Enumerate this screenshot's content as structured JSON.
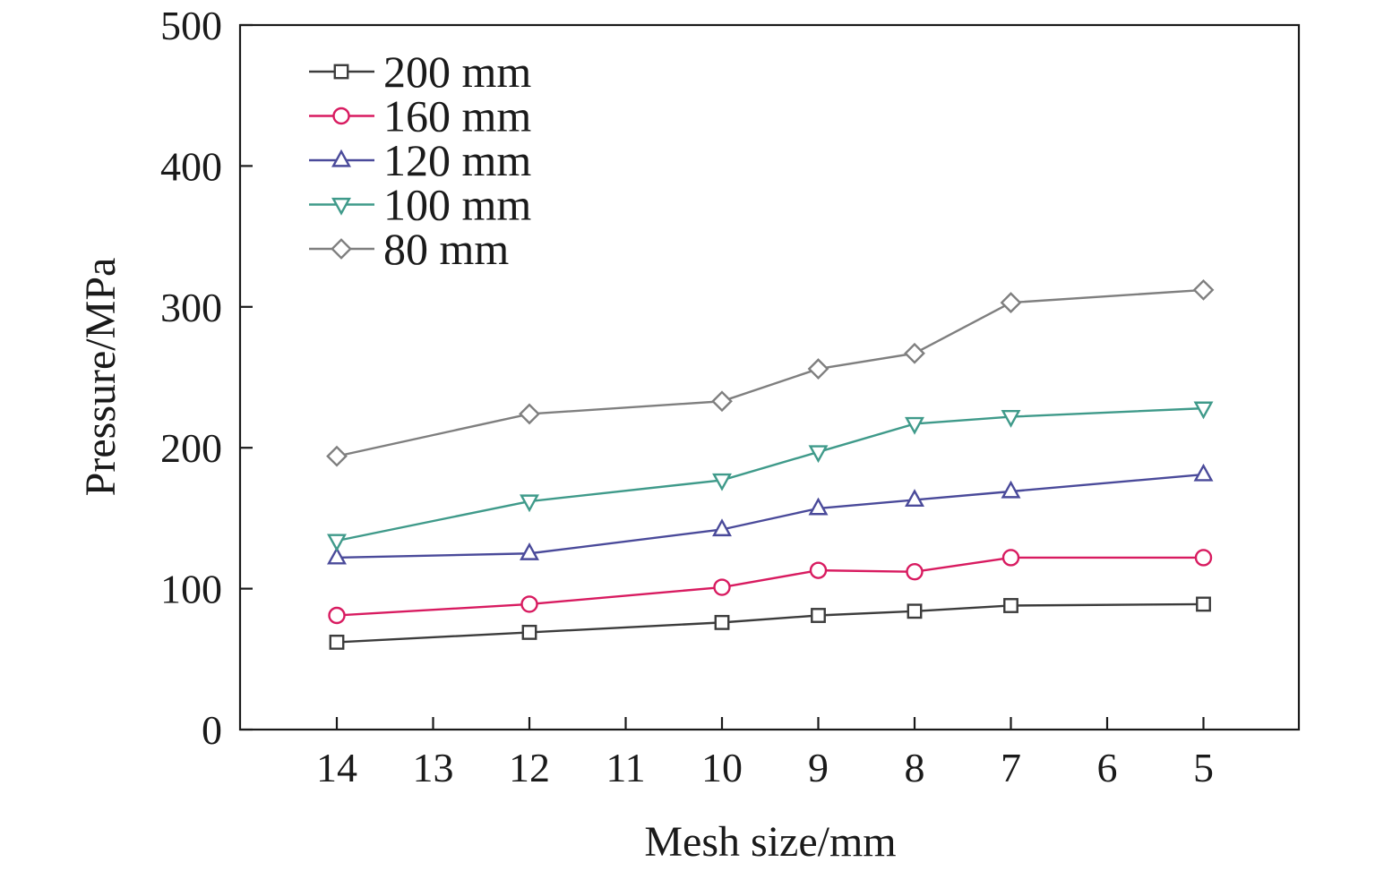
{
  "chart_data": {
    "type": "line",
    "title": "",
    "xlabel": "Mesh size/mm",
    "ylabel": "Pressure/MPa",
    "x_ticks": [
      14,
      13,
      12,
      11,
      10,
      9,
      8,
      7,
      6,
      5
    ],
    "x": [
      14,
      12,
      10,
      9,
      8,
      7,
      5
    ],
    "ylim": [
      0,
      500
    ],
    "y_ticks": [
      0,
      100,
      200,
      300,
      400,
      500
    ],
    "legend_position": "top-left",
    "series": [
      {
        "name": "200 mm",
        "marker": "square",
        "color": "#3c3c3c",
        "values": [
          62,
          69,
          76,
          81,
          84,
          88,
          89
        ]
      },
      {
        "name": "160 mm",
        "marker": "circle",
        "color": "#d81b60",
        "values": [
          81,
          89,
          101,
          113,
          112,
          122,
          122
        ]
      },
      {
        "name": "120 mm",
        "marker": "triangle-up",
        "color": "#4a4a9a",
        "values": [
          122,
          125,
          142,
          157,
          163,
          169,
          181
        ]
      },
      {
        "name": "100 mm",
        "marker": "triangle-down",
        "color": "#3f9a8a",
        "values": [
          134,
          162,
          177,
          197,
          217,
          222,
          228
        ]
      },
      {
        "name": "80 mm",
        "marker": "diamond",
        "color": "#7f7f7f",
        "values": [
          194,
          224,
          233,
          256,
          267,
          303,
          312
        ]
      }
    ]
  }
}
